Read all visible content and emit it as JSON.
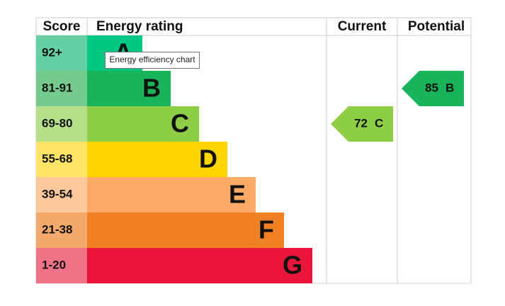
{
  "header": {
    "score": "Score",
    "rating": "Energy rating",
    "current": "Current",
    "potential": "Potential"
  },
  "bands": [
    {
      "score": "92+",
      "letter": "A",
      "color": "#00c781",
      "score_color": "#66cfa3"
    },
    {
      "score": "81-91",
      "letter": "B",
      "color": "#19b459",
      "score_color": "#75cb8e"
    },
    {
      "score": "69-80",
      "letter": "C",
      "color": "#8dce46",
      "score_color": "#b5df8b"
    },
    {
      "score": "55-68",
      "letter": "D",
      "color": "#ffd500",
      "score_color": "#ffe466"
    },
    {
      "score": "39-54",
      "letter": "E",
      "color": "#fcaa65",
      "score_color": "#fdc89b"
    },
    {
      "score": "21-38",
      "letter": "F",
      "color": "#ef8023",
      "score_color": "#f5aa6d"
    },
    {
      "score": "1-20",
      "letter": "G",
      "color": "#e9153b",
      "score_color": "#f27288"
    }
  ],
  "current": {
    "score": 72,
    "rating": "C"
  },
  "potential": {
    "score": 85,
    "rating": "B"
  },
  "tooltip": "Energy efficiency chart"
}
